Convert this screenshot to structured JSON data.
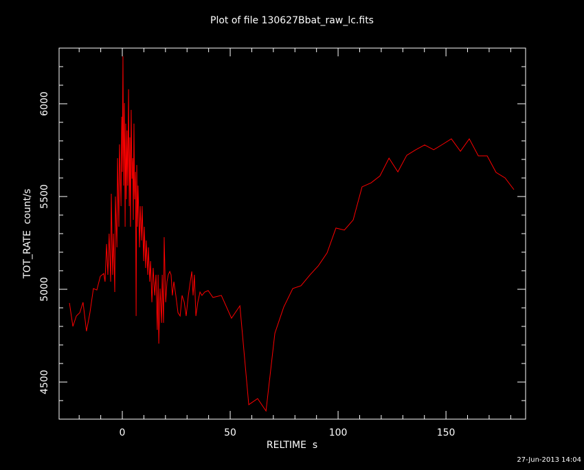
{
  "chart_data": {
    "type": "line",
    "title": "Plot of file 130627Bbat_raw_lc.fits",
    "x_label": "RELTIME  s",
    "y_label": "TOT_RATE  count/s",
    "footer": "27-Jun-2013 14:04",
    "color": "#ff0000",
    "xlim": [
      -29.3,
      186.9
    ],
    "ylim": [
      4300,
      6300
    ],
    "xticks": [
      0,
      50,
      100,
      150
    ],
    "yticks": [
      4500,
      5000,
      5500,
      6000
    ],
    "minor_xticks": [
      -20,
      -10,
      10,
      20,
      30,
      40,
      60,
      70,
      80,
      90,
      110,
      120,
      130,
      140,
      160,
      170,
      180
    ],
    "minor_yticks": [
      4400,
      4600,
      4700,
      4800,
      4900,
      5100,
      5200,
      5300,
      5400,
      5600,
      5700,
      5800,
      5900,
      6100,
      6200
    ],
    "x": [
      -24.5,
      -22.9,
      -21.3,
      -19.7,
      -18.2,
      -16.6,
      -15.0,
      -13.4,
      -11.8,
      -10.2,
      -8.6,
      -8.0,
      -7.3,
      -6.7,
      -6.1,
      -5.4,
      -5.1,
      -4.5,
      -4.1,
      -3.5,
      -3.2,
      -2.5,
      -2.2,
      -1.6,
      -1.3,
      -0.6,
      -0.3,
      0,
      0.3,
      0.6,
      1.0,
      1.3,
      1.6,
      1.9,
      2.2,
      2.5,
      2.9,
      3.2,
      3.5,
      3.8,
      4.1,
      4.5,
      4.8,
      5.1,
      5.4,
      5.7,
      6.1,
      6.4,
      6.7,
      7.0,
      7.3,
      8.0,
      8.3,
      8.9,
      9.2,
      9.9,
      10.2,
      10.8,
      11.1,
      11.8,
      12.1,
      12.7,
      13.1,
      13.7,
      14.3,
      15.0,
      15.6,
      16.2,
      16.6,
      16.9,
      17.5,
      18.2,
      18.5,
      19.1,
      19.4,
      20.1,
      20.7,
      21.3,
      22.0,
      22.6,
      23.2,
      23.9,
      24.8,
      25.8,
      26.8,
      27.7,
      28.7,
      29.6,
      30.6,
      31.5,
      32.2,
      32.8,
      33.4,
      34.1,
      35.0,
      36.0,
      36.9,
      38.2,
      39.8,
      42.0,
      45.9,
      50.6,
      54.5,
      58.6,
      62.7,
      66.6,
      70.7,
      74.8,
      79.0,
      82.8,
      87.0,
      90.8,
      94.9,
      99.0,
      102.9,
      107.0,
      111.1,
      115.3,
      119.4,
      123.6,
      127.7,
      131.8,
      136.0,
      140.1,
      144.3,
      148.4,
      152.5,
      156.7,
      160.8,
      165.0,
      169.1,
      173.2,
      177.4,
      181.5
    ],
    "values": [
      4926,
      4800,
      4856,
      4874,
      4930,
      4774,
      4874,
      5004,
      4996,
      5070,
      5085,
      5041,
      5244,
      5078,
      5300,
      5041,
      5515,
      5078,
      5300,
      4985,
      5500,
      5226,
      5707,
      5337,
      5781,
      5448,
      5930,
      5633,
      6256,
      5559,
      6004,
      5337,
      5893,
      5485,
      5856,
      5559,
      6078,
      5448,
      5819,
      5337,
      5967,
      5596,
      5707,
      5374,
      5893,
      5485,
      5633,
      4856,
      5670,
      5337,
      5559,
      5226,
      5448,
      5263,
      5448,
      5152,
      5337,
      5115,
      5263,
      5078,
      5226,
      5041,
      5152,
      4930,
      5115,
      4967,
      5078,
      4781,
      5078,
      4707,
      5004,
      4819,
      5078,
      4819,
      5281,
      4930,
      5041,
      5078,
      5096,
      5078,
      4967,
      5041,
      4967,
      4874,
      4856,
      4967,
      4930,
      4856,
      4967,
      5041,
      5096,
      4967,
      5078,
      4856,
      4930,
      4985,
      4967,
      4985,
      4993,
      4956,
      4967,
      4844,
      4911,
      4378,
      4411,
      4344,
      4763,
      4904,
      5004,
      5019,
      5078,
      5126,
      5196,
      5330,
      5319,
      5374,
      5552,
      5574,
      5611,
      5707,
      5633,
      5722,
      5752,
      5778,
      5752,
      5781,
      5811,
      5744,
      5811,
      5719,
      5719,
      5630,
      5600,
      5537
    ]
  }
}
